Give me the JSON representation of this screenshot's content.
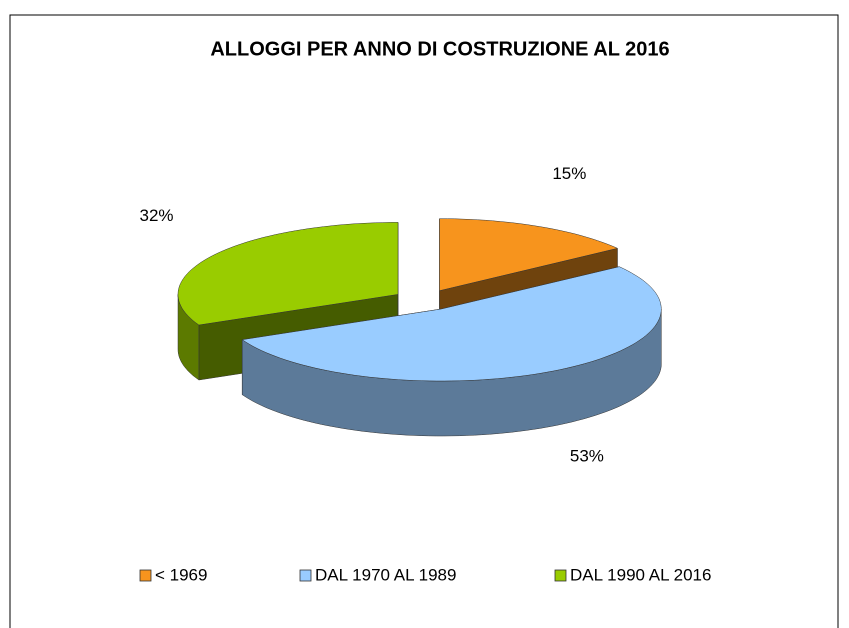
{
  "chart_data": {
    "type": "pie3d",
    "title": "ALLOGGI PER ANNO DI COSTRUZIONE  AL 2016",
    "categories": [
      "< 1969",
      "DAL 1970 AL 1989",
      "DAL 1990 AL 2016"
    ],
    "values": [
      15,
      53,
      32
    ],
    "value_labels": [
      "15%",
      "53%",
      "32%"
    ],
    "colors": [
      "#f7941d",
      "#99ccff",
      "#99cc00"
    ],
    "legend": "bottom"
  }
}
